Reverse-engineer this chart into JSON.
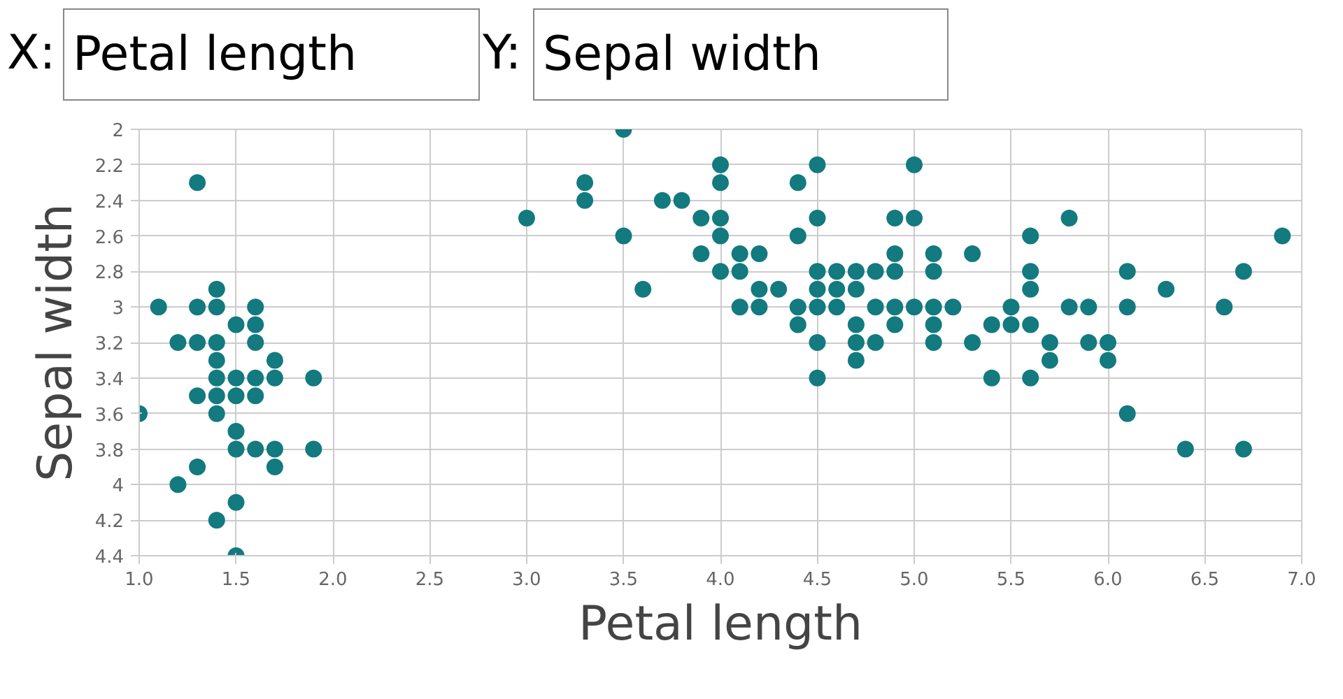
{
  "chart_data": {
    "type": "scatter",
    "xlabel": "Petal length",
    "ylabel": "Sepal width",
    "annotations": [
      "X:",
      "Petal length",
      "Y:",
      "Sepal width"
    ],
    "series": [
      {
        "color": "#137a7f",
        "x": [
          1.3,
          1.4,
          1.1,
          1.3,
          1.4,
          1.6,
          1.5,
          1.6,
          1.2,
          1.3,
          1.4,
          1.6,
          1.4,
          1.7,
          1.4,
          1.5,
          1.6,
          1.7,
          1.9,
          1.3,
          1.4,
          1.5,
          1.6,
          1.0,
          1.4,
          1.5,
          1.5,
          1.6,
          1.7,
          1.9,
          1.3,
          1.7,
          1.2,
          1.5,
          1.4,
          1.5,
          3.5,
          4.0,
          4.5,
          5.0,
          3.3,
          4.0,
          4.4,
          3.3,
          3.7,
          3.8,
          3.0,
          3.9,
          4.0,
          4.5,
          4.9,
          5.0,
          5.8,
          3.5,
          4.0,
          4.4,
          5.6,
          6.9,
          3.9,
          4.1,
          4.2,
          4.9,
          5.1,
          5.3,
          4.0,
          4.1,
          4.5,
          4.6,
          4.7,
          4.8,
          4.9,
          5.1,
          5.6,
          6.1,
          6.7,
          3.6,
          4.2,
          4.3,
          4.5,
          4.6,
          4.7,
          5.6,
          6.3,
          4.1,
          4.2,
          4.4,
          4.5,
          4.6,
          4.8,
          4.9,
          5.0,
          5.1,
          5.2,
          5.5,
          5.8,
          5.9,
          6.1,
          6.6,
          4.4,
          4.7,
          4.9,
          5.1,
          5.4,
          5.5,
          5.6,
          4.5,
          4.7,
          4.8,
          5.1,
          5.3,
          5.7,
          5.9,
          6.0,
          4.7,
          5.7,
          6.0,
          4.5,
          5.4,
          5.6,
          6.1,
          6.4,
          6.7
        ],
        "values": [
          2.3,
          2.9,
          3.0,
          3.0,
          3.0,
          3.0,
          3.1,
          3.1,
          3.2,
          3.2,
          3.2,
          3.2,
          3.3,
          3.3,
          3.4,
          3.4,
          3.4,
          3.4,
          3.4,
          3.5,
          3.5,
          3.5,
          3.5,
          3.6,
          3.6,
          3.7,
          3.8,
          3.8,
          3.8,
          3.8,
          3.9,
          3.9,
          4.0,
          4.1,
          4.2,
          4.4,
          2.0,
          2.2,
          2.2,
          2.2,
          2.3,
          2.3,
          2.3,
          2.4,
          2.4,
          2.4,
          2.5,
          2.5,
          2.5,
          2.5,
          2.5,
          2.5,
          2.5,
          2.6,
          2.6,
          2.6,
          2.6,
          2.6,
          2.7,
          2.7,
          2.7,
          2.7,
          2.7,
          2.7,
          2.8,
          2.8,
          2.8,
          2.8,
          2.8,
          2.8,
          2.8,
          2.8,
          2.8,
          2.8,
          2.8,
          2.9,
          2.9,
          2.9,
          2.9,
          2.9,
          2.9,
          2.9,
          2.9,
          3.0,
          3.0,
          3.0,
          3.0,
          3.0,
          3.0,
          3.0,
          3.0,
          3.0,
          3.0,
          3.0,
          3.0,
          3.0,
          3.0,
          3.0,
          3.1,
          3.1,
          3.1,
          3.1,
          3.1,
          3.1,
          3.1,
          3.2,
          3.2,
          3.2,
          3.2,
          3.2,
          3.2,
          3.2,
          3.2,
          3.3,
          3.3,
          3.3,
          3.4,
          3.4,
          3.4,
          3.6,
          3.8,
          3.8
        ]
      }
    ],
    "marker": "circle",
    "grid": true,
    "xlim": [
      1.0,
      7.0
    ],
    "xticks": [
      {
        "value": 1.0,
        "label": "1.0"
      },
      {
        "value": 1.5,
        "label": "1.5"
      },
      {
        "value": 2.0,
        "label": "2.0"
      },
      {
        "value": 2.5,
        "label": "2.5"
      },
      {
        "value": 3.0,
        "label": "3.0"
      },
      {
        "value": 3.5,
        "label": "3.5"
      },
      {
        "value": 4.0,
        "label": "4.0"
      },
      {
        "value": 4.5,
        "label": "4.5"
      },
      {
        "value": 5.0,
        "label": "5.0"
      },
      {
        "value": 5.5,
        "label": "5.5"
      },
      {
        "value": 6.0,
        "label": "6.0"
      },
      {
        "value": 6.5,
        "label": "6.5"
      },
      {
        "value": 7.0,
        "label": "7.0"
      }
    ],
    "ylim": [
      4.4,
      2
    ],
    "yticks": [
      2,
      2.2,
      2.4,
      2.6,
      2.8,
      3,
      3.2,
      3.4,
      3.6,
      3.8,
      4,
      4.2,
      4.4
    ]
  }
}
